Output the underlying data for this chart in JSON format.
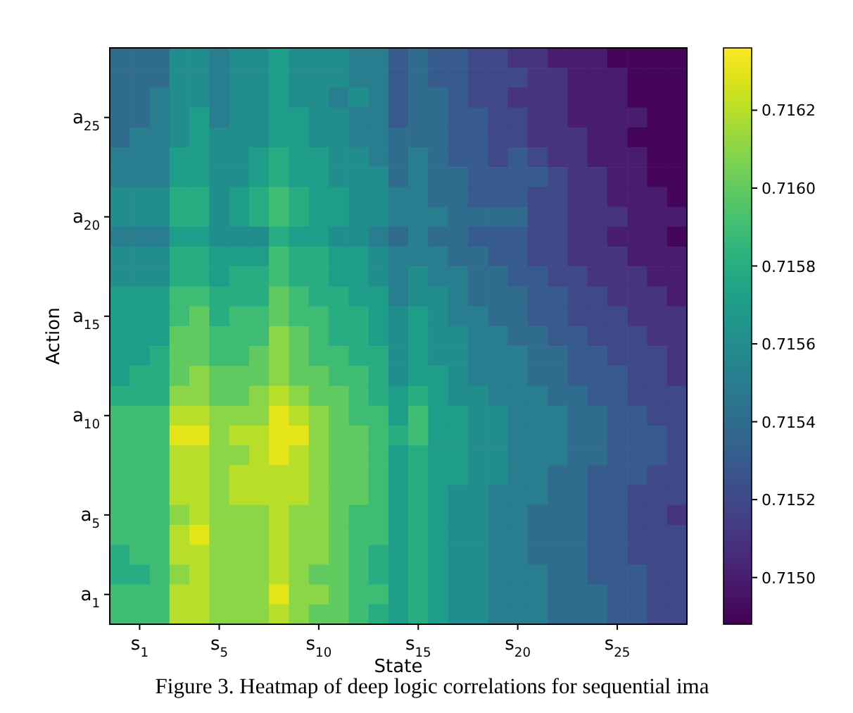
{
  "chart_data": {
    "type": "heatmap",
    "xlabel": "State",
    "ylabel": "Action",
    "categories": [
      null,
      "s$_{1}$",
      null,
      null,
      null,
      "s$_{5}$",
      null,
      null,
      null,
      null,
      "s$_{10}$",
      null,
      null,
      null,
      null,
      "s$_{15}$",
      null,
      null,
      null,
      null,
      "s$_{20}$",
      null,
      null,
      null,
      null,
      "s$_{25}$",
      null,
      null,
      null
    ],
    "y_categories": [
      null,
      null,
      null,
      "a$_{25}$",
      null,
      null,
      null,
      null,
      "a$_{20}$",
      null,
      null,
      null,
      null,
      "a$_{15}$",
      null,
      null,
      null,
      null,
      "a$_{10}$",
      null,
      null,
      null,
      null,
      "a$_{5}$",
      null,
      null,
      null,
      "a$_{1}$",
      null
    ],
    "clim": [
      0.71488,
      0.71636
    ],
    "cticks": [
      {
        "value": 0.715,
        "label": "0.7150"
      },
      {
        "value": 0.7152,
        "label": "0.7152"
      },
      {
        "value": 0.7154,
        "label": "0.7154"
      },
      {
        "value": 0.7156,
        "label": "0.7156"
      },
      {
        "value": 0.7158,
        "label": "0.7158"
      },
      {
        "value": 0.716,
        "label": "0.7160"
      },
      {
        "value": 0.7162,
        "label": "0.7162"
      }
    ],
    "annotations": [
      "Figure 3. Heatmap of deep logic correlations for sequential ima"
    ],
    "cells": [
      [
        0.7154,
        0.7154,
        0.7154,
        0.7156,
        0.7156,
        0.7155,
        0.7156,
        0.7156,
        0.7157,
        0.7156,
        0.7156,
        0.7156,
        0.7155,
        0.7155,
        0.7153,
        0.7154,
        0.7153,
        0.7153,
        0.7152,
        0.7152,
        0.7151,
        0.7151,
        0.715,
        0.715,
        0.715,
        0.7149,
        0.7149,
        0.7149,
        0.7149
      ],
      [
        0.7154,
        0.7154,
        0.7154,
        0.7156,
        0.7156,
        0.7155,
        0.7156,
        0.7156,
        0.7157,
        0.7156,
        0.7156,
        0.7156,
        0.7155,
        0.7155,
        0.7153,
        0.7154,
        0.7153,
        0.7153,
        0.7152,
        0.7152,
        0.7152,
        0.7151,
        0.7151,
        0.715,
        0.715,
        0.715,
        0.7149,
        0.7149,
        0.7149
      ],
      [
        0.7154,
        0.7154,
        0.7155,
        0.7156,
        0.7156,
        0.7155,
        0.7156,
        0.7156,
        0.7157,
        0.7156,
        0.7156,
        0.7155,
        0.7156,
        0.7155,
        0.7153,
        0.7154,
        0.7154,
        0.7153,
        0.7152,
        0.7152,
        0.7151,
        0.7151,
        0.7151,
        0.715,
        0.715,
        0.715,
        0.7149,
        0.7149,
        0.7149
      ],
      [
        0.7154,
        0.7154,
        0.7155,
        0.7156,
        0.7157,
        0.7155,
        0.7156,
        0.7156,
        0.7157,
        0.7157,
        0.7156,
        0.7156,
        0.7155,
        0.7155,
        0.7153,
        0.7154,
        0.7154,
        0.7153,
        0.7153,
        0.7152,
        0.7152,
        0.7151,
        0.7151,
        0.715,
        0.715,
        0.715,
        0.715,
        0.7149,
        0.7149
      ],
      [
        0.7154,
        0.7155,
        0.7155,
        0.7156,
        0.7157,
        0.7156,
        0.7156,
        0.7156,
        0.7157,
        0.7157,
        0.7156,
        0.7156,
        0.7155,
        0.7155,
        0.7154,
        0.7154,
        0.7154,
        0.7153,
        0.7153,
        0.7152,
        0.7152,
        0.7151,
        0.7151,
        0.7151,
        0.715,
        0.715,
        0.7149,
        0.7149,
        0.7149
      ],
      [
        0.7155,
        0.7155,
        0.7155,
        0.7157,
        0.7157,
        0.7156,
        0.7156,
        0.7157,
        0.7158,
        0.7157,
        0.7157,
        0.7156,
        0.7156,
        0.7155,
        0.7154,
        0.7155,
        0.7154,
        0.7153,
        0.7153,
        0.7152,
        0.7153,
        0.7152,
        0.7151,
        0.7151,
        0.715,
        0.715,
        0.715,
        0.7149,
        0.7149
      ],
      [
        0.7155,
        0.7155,
        0.7155,
        0.7157,
        0.7157,
        0.7156,
        0.7156,
        0.7157,
        0.7158,
        0.7157,
        0.7157,
        0.7156,
        0.7156,
        0.7156,
        0.7154,
        0.7155,
        0.7154,
        0.7154,
        0.7153,
        0.7153,
        0.7153,
        0.7153,
        0.7152,
        0.7151,
        0.7151,
        0.715,
        0.715,
        0.7149,
        0.7149
      ],
      [
        0.7156,
        0.7156,
        0.7156,
        0.7158,
        0.7158,
        0.7156,
        0.7157,
        0.7158,
        0.7159,
        0.7158,
        0.7157,
        0.7157,
        0.7156,
        0.7156,
        0.7155,
        0.7155,
        0.7154,
        0.7154,
        0.7153,
        0.7153,
        0.7153,
        0.7152,
        0.7152,
        0.7151,
        0.7151,
        0.715,
        0.715,
        0.715,
        0.7149
      ],
      [
        0.7156,
        0.7156,
        0.7156,
        0.7158,
        0.7158,
        0.7156,
        0.7157,
        0.7158,
        0.7159,
        0.7158,
        0.7157,
        0.7157,
        0.7156,
        0.7156,
        0.7155,
        0.7155,
        0.7155,
        0.7154,
        0.7154,
        0.7154,
        0.7154,
        0.7152,
        0.7152,
        0.7151,
        0.7151,
        0.7151,
        0.715,
        0.715,
        0.715
      ],
      [
        0.7155,
        0.7155,
        0.7155,
        0.7157,
        0.7157,
        0.7156,
        0.7156,
        0.7156,
        0.7158,
        0.7157,
        0.7157,
        0.7156,
        0.7156,
        0.7155,
        0.7154,
        0.7155,
        0.7154,
        0.7154,
        0.7153,
        0.7153,
        0.7153,
        0.7152,
        0.7152,
        0.7151,
        0.7151,
        0.715,
        0.715,
        0.715,
        0.7149
      ],
      [
        0.7156,
        0.7156,
        0.7156,
        0.7158,
        0.7158,
        0.7157,
        0.7157,
        0.7157,
        0.7159,
        0.7158,
        0.7158,
        0.7157,
        0.7157,
        0.7156,
        0.7155,
        0.7155,
        0.7155,
        0.7154,
        0.7154,
        0.7153,
        0.7153,
        0.7152,
        0.7152,
        0.7151,
        0.7151,
        0.7151,
        0.715,
        0.715,
        0.715
      ],
      [
        0.7156,
        0.7156,
        0.7156,
        0.7158,
        0.7158,
        0.7157,
        0.7158,
        0.7158,
        0.7159,
        0.7158,
        0.7158,
        0.7157,
        0.7157,
        0.7156,
        0.7155,
        0.7156,
        0.7155,
        0.7155,
        0.7154,
        0.7154,
        0.7153,
        0.7153,
        0.7152,
        0.7152,
        0.7151,
        0.7151,
        0.7151,
        0.715,
        0.715
      ],
      [
        0.7157,
        0.7157,
        0.7157,
        0.7159,
        0.7159,
        0.7158,
        0.7158,
        0.7158,
        0.716,
        0.7159,
        0.7158,
        0.7158,
        0.7157,
        0.7157,
        0.7155,
        0.7156,
        0.7156,
        0.7155,
        0.7154,
        0.7154,
        0.7154,
        0.7153,
        0.7153,
        0.7152,
        0.7152,
        0.7151,
        0.7151,
        0.7151,
        0.715
      ],
      [
        0.7157,
        0.7157,
        0.7157,
        0.7159,
        0.716,
        0.7158,
        0.7159,
        0.7159,
        0.716,
        0.7159,
        0.7159,
        0.7158,
        0.7158,
        0.7157,
        0.7156,
        0.7157,
        0.7156,
        0.7155,
        0.7155,
        0.7154,
        0.7154,
        0.7153,
        0.7153,
        0.7152,
        0.7152,
        0.7152,
        0.7151,
        0.7151,
        0.7151
      ],
      [
        0.7157,
        0.7157,
        0.7157,
        0.716,
        0.716,
        0.7159,
        0.7159,
        0.7159,
        0.7161,
        0.716,
        0.7159,
        0.7158,
        0.7158,
        0.7157,
        0.7156,
        0.7157,
        0.7156,
        0.7156,
        0.7155,
        0.7155,
        0.7154,
        0.7154,
        0.7153,
        0.7153,
        0.7152,
        0.7152,
        0.7152,
        0.7151,
        0.7151
      ],
      [
        0.7157,
        0.7157,
        0.7158,
        0.716,
        0.716,
        0.7159,
        0.7159,
        0.716,
        0.7161,
        0.716,
        0.7159,
        0.7159,
        0.7158,
        0.7158,
        0.7156,
        0.7157,
        0.7156,
        0.7156,
        0.7155,
        0.7155,
        0.7155,
        0.7154,
        0.7154,
        0.7153,
        0.7153,
        0.7152,
        0.7152,
        0.7152,
        0.7151
      ],
      [
        0.7157,
        0.7158,
        0.7158,
        0.716,
        0.7161,
        0.716,
        0.716,
        0.716,
        0.7161,
        0.716,
        0.716,
        0.7159,
        0.7159,
        0.7158,
        0.7156,
        0.7157,
        0.7157,
        0.7156,
        0.7155,
        0.7155,
        0.7155,
        0.7154,
        0.7154,
        0.7153,
        0.7153,
        0.7153,
        0.7152,
        0.7152,
        0.7151
      ],
      [
        0.7158,
        0.7158,
        0.7158,
        0.7161,
        0.7161,
        0.716,
        0.716,
        0.7161,
        0.7162,
        0.7161,
        0.716,
        0.716,
        0.7159,
        0.7158,
        0.7157,
        0.7158,
        0.7157,
        0.7156,
        0.7156,
        0.7155,
        0.7155,
        0.7155,
        0.7154,
        0.7154,
        0.7153,
        0.7153,
        0.7152,
        0.7152,
        0.7152
      ],
      [
        0.7159,
        0.7159,
        0.7159,
        0.7162,
        0.7162,
        0.7161,
        0.7161,
        0.7161,
        0.7163,
        0.7162,
        0.7161,
        0.716,
        0.7159,
        0.7159,
        0.7157,
        0.7159,
        0.7157,
        0.7157,
        0.7156,
        0.7156,
        0.7155,
        0.7155,
        0.7155,
        0.7154,
        0.7154,
        0.7153,
        0.7153,
        0.7152,
        0.7152
      ],
      [
        0.7159,
        0.7159,
        0.7159,
        0.7163,
        0.7163,
        0.7161,
        0.7162,
        0.7162,
        0.7163,
        0.7163,
        0.7161,
        0.716,
        0.716,
        0.7159,
        0.7158,
        0.7159,
        0.7157,
        0.7157,
        0.7156,
        0.7156,
        0.7155,
        0.7155,
        0.7155,
        0.7154,
        0.7154,
        0.7153,
        0.7153,
        0.7153,
        0.7152
      ],
      [
        0.7159,
        0.7159,
        0.7159,
        0.7162,
        0.7162,
        0.7161,
        0.7161,
        0.7162,
        0.7163,
        0.7162,
        0.7161,
        0.716,
        0.716,
        0.7159,
        0.7157,
        0.7158,
        0.7157,
        0.7157,
        0.7156,
        0.7156,
        0.7155,
        0.7155,
        0.7155,
        0.7154,
        0.7154,
        0.7153,
        0.7153,
        0.7153,
        0.7152
      ],
      [
        0.7159,
        0.7159,
        0.7159,
        0.7162,
        0.7162,
        0.7161,
        0.7162,
        0.7162,
        0.7162,
        0.7162,
        0.7161,
        0.716,
        0.716,
        0.7159,
        0.7157,
        0.7158,
        0.7157,
        0.7157,
        0.7156,
        0.7156,
        0.7155,
        0.7155,
        0.7154,
        0.7154,
        0.7153,
        0.7153,
        0.7153,
        0.7152,
        0.7152
      ],
      [
        0.7159,
        0.7159,
        0.7159,
        0.7162,
        0.7162,
        0.7161,
        0.7162,
        0.7162,
        0.7162,
        0.7162,
        0.7161,
        0.716,
        0.716,
        0.7159,
        0.7157,
        0.7158,
        0.7157,
        0.7156,
        0.7156,
        0.7155,
        0.7155,
        0.7155,
        0.7154,
        0.7154,
        0.7153,
        0.7153,
        0.7152,
        0.7152,
        0.7152
      ],
      [
        0.7159,
        0.7159,
        0.7159,
        0.7161,
        0.7162,
        0.7161,
        0.7161,
        0.7161,
        0.7162,
        0.7161,
        0.7161,
        0.716,
        0.7159,
        0.7159,
        0.7157,
        0.7158,
        0.7157,
        0.7156,
        0.7156,
        0.7155,
        0.7155,
        0.7154,
        0.7154,
        0.7154,
        0.7153,
        0.7153,
        0.7152,
        0.7152,
        0.7151
      ],
      [
        0.7159,
        0.7159,
        0.7159,
        0.7162,
        0.7163,
        0.7161,
        0.7161,
        0.7161,
        0.7162,
        0.7161,
        0.7161,
        0.716,
        0.7159,
        0.7159,
        0.7157,
        0.7158,
        0.7157,
        0.7156,
        0.7156,
        0.7155,
        0.7155,
        0.7154,
        0.7154,
        0.7154,
        0.7153,
        0.7153,
        0.7152,
        0.7152,
        0.7152
      ],
      [
        0.7158,
        0.7159,
        0.7159,
        0.7162,
        0.7162,
        0.7161,
        0.7161,
        0.7161,
        0.7162,
        0.7161,
        0.7161,
        0.716,
        0.7159,
        0.7158,
        0.7157,
        0.7158,
        0.7157,
        0.7156,
        0.7156,
        0.7155,
        0.7155,
        0.7154,
        0.7154,
        0.7154,
        0.7153,
        0.7153,
        0.7152,
        0.7152,
        0.7152
      ],
      [
        0.7158,
        0.7158,
        0.7159,
        0.7161,
        0.7162,
        0.7161,
        0.7161,
        0.7161,
        0.7162,
        0.7161,
        0.716,
        0.716,
        0.7159,
        0.7158,
        0.7157,
        0.7158,
        0.7157,
        0.7156,
        0.7156,
        0.7155,
        0.7155,
        0.7155,
        0.7154,
        0.7154,
        0.7153,
        0.7153,
        0.7153,
        0.7152,
        0.7152
      ],
      [
        0.7159,
        0.7159,
        0.7159,
        0.7162,
        0.7162,
        0.7161,
        0.7161,
        0.7161,
        0.7163,
        0.7161,
        0.7161,
        0.716,
        0.7159,
        0.7159,
        0.7157,
        0.7158,
        0.7157,
        0.7156,
        0.7156,
        0.7155,
        0.7155,
        0.7155,
        0.7154,
        0.7154,
        0.7154,
        0.7153,
        0.7153,
        0.7152,
        0.7152
      ],
      [
        0.7159,
        0.7159,
        0.7159,
        0.7162,
        0.7162,
        0.7161,
        0.7161,
        0.7161,
        0.7162,
        0.7161,
        0.716,
        0.716,
        0.7159,
        0.7158,
        0.7157,
        0.7158,
        0.7157,
        0.7156,
        0.7156,
        0.7155,
        0.7155,
        0.7155,
        0.7154,
        0.7154,
        0.7154,
        0.7153,
        0.7153,
        0.7152,
        0.7152
      ]
    ]
  }
}
